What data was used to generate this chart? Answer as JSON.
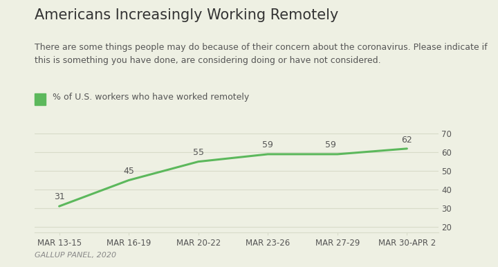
{
  "title": "Americans Increasingly Working Remotely",
  "subtitle": "There are some things people may do because of their concern about the coronavirus. Please indicate if\nthis is something you have done, are considering doing or have not considered.",
  "legend_label": "% of U.S. workers who have worked remotely",
  "source": "GALLUP PANEL, 2020",
  "x_labels": [
    "MAR 13-15",
    "MAR 16-19",
    "MAR 20-22",
    "MAR 23-26",
    "MAR 27-29",
    "MAR 30-APR 2"
  ],
  "y_values": [
    31,
    45,
    55,
    59,
    59,
    62
  ],
  "line_color": "#5CB85C",
  "background_color": "#eef0e3",
  "plot_bg_color": "#eef0e3",
  "grid_color": "#d8dbc9",
  "text_color": "#555555",
  "title_color": "#333333",
  "source_color": "#888888",
  "ylim": [
    17,
    73
  ],
  "yticks": [
    20,
    30,
    40,
    50,
    60,
    70
  ],
  "title_fontsize": 15,
  "subtitle_fontsize": 9,
  "legend_fontsize": 9,
  "tick_fontsize": 8.5,
  "source_fontsize": 8,
  "line_width": 2.2,
  "data_label_fontsize": 9,
  "data_label_color": "#555555"
}
